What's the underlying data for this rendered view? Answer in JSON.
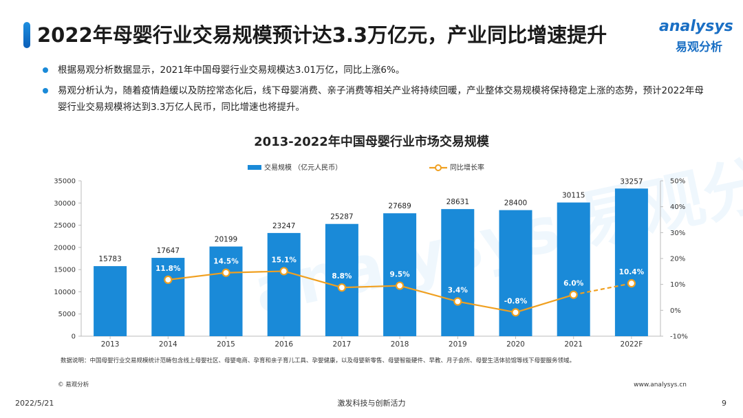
{
  "title": "2022年母婴行业交易规模预计达3.3万亿元，产业同比增速提升",
  "logo": {
    "en": "analysys",
    "cn": "易观分析"
  },
  "bullets": [
    "根据易观分析数据显示，2021年中国母婴行业交易规模达3.01万亿，同比上涨6%。",
    "易观分析认为，随着疫情趋缓以及防控常态化后，线下母婴消费、亲子消费等相关产业将持续回暖，产业整体交易规模将保持稳定上涨的态势，预计2022年母婴行业交易规模将达到3.3万亿人民币，同比增速也将提升。"
  ],
  "chart_data": {
    "type": "bar",
    "title": "2013-2022年中国母婴行业市场交易规模",
    "categories": [
      "2013",
      "2014",
      "2015",
      "2016",
      "2017",
      "2018",
      "2019",
      "2020",
      "2021",
      "2022F"
    ],
    "series": [
      {
        "name": "交易规模 （亿元人民币）",
        "type": "bar",
        "axis": "left",
        "values": [
          15783,
          17647,
          20199,
          23247,
          25287,
          27689,
          28631,
          28400,
          30115,
          33257
        ]
      },
      {
        "name": "同比增长率",
        "type": "line",
        "axis": "right",
        "values": [
          null,
          11.8,
          14.5,
          15.1,
          8.8,
          9.5,
          3.4,
          -0.8,
          6.0,
          10.4
        ],
        "labels": [
          "",
          "11.8%",
          "14.5%",
          "15.1%",
          "8.8%",
          "9.5%",
          "3.4%",
          "-0.8%",
          "6.0%",
          "10.4%"
        ],
        "dashed_from_index": 8
      }
    ],
    "left_axis": {
      "min": 0,
      "max": 35000,
      "step": 5000,
      "ticks": [
        "0",
        "5000",
        "10000",
        "15000",
        "20000",
        "25000",
        "30000",
        "35000"
      ]
    },
    "right_axis": {
      "min": -10,
      "max": 50,
      "step": 10,
      "ticks": [
        "-10%",
        "0%",
        "10%",
        "20%",
        "30%",
        "40%",
        "50%"
      ]
    },
    "legend_position": "top-center",
    "colors": {
      "bar": "#1a8ad8",
      "line": "#f0a020"
    }
  },
  "note": "数据说明：中国母婴行业交易规模统计范畴包含线上母婴社区、母婴电商、孕育和亲子育儿工具、孕婴健康，以及母婴新零售、母婴智能硬件、早教、月子会所、母婴生活体验馆等线下母婴服务领域。",
  "copyright": "© 易观分析",
  "website": "www.analysys.cn",
  "footer": {
    "date": "2022/5/21",
    "slogan": "激发科技与创新活力",
    "page": "9"
  },
  "watermark": "analysys 易观分析"
}
